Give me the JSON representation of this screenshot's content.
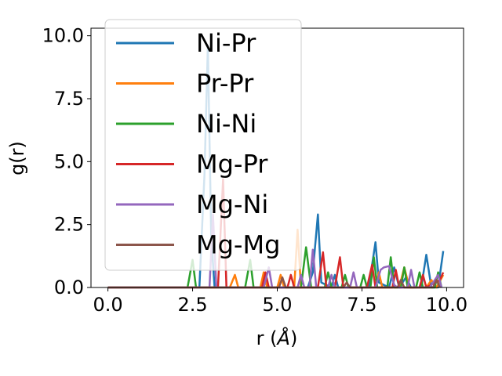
{
  "chart_data": {
    "type": "line",
    "xlabel_main": "r (",
    "xlabel_unit": "Å",
    "xlabel_close": ")",
    "ylabel": "g(r)",
    "xlim": [
      -0.5,
      10.5
    ],
    "ylim": [
      0,
      10.3
    ],
    "xticks": [
      0.0,
      2.5,
      5.0,
      7.5,
      10.0
    ],
    "xtick_labels": [
      "0.0",
      "2.5",
      "5.0",
      "7.5",
      "10.0"
    ],
    "yticks": [
      0.0,
      2.5,
      5.0,
      7.5,
      10.0
    ],
    "ytick_labels": [
      "0.0",
      "2.5",
      "5.0",
      "7.5",
      "10.0"
    ],
    "grid": false,
    "legend_position": "upper-left",
    "series": [
      {
        "name": "Ni-Pr",
        "color": "#1f77b4",
        "points": [
          [
            0,
            0
          ],
          [
            2.7,
            0
          ],
          [
            2.85,
            4.5
          ],
          [
            2.95,
            9.6
          ],
          [
            3.05,
            2.0
          ],
          [
            3.15,
            0
          ],
          [
            5.9,
            0
          ],
          [
            6.05,
            0.6
          ],
          [
            6.2,
            2.9
          ],
          [
            6.3,
            0.2
          ],
          [
            6.6,
            0
          ],
          [
            6.7,
            0.5
          ],
          [
            6.8,
            0
          ],
          [
            7.7,
            0
          ],
          [
            7.9,
            1.8
          ],
          [
            8.0,
            0.2
          ],
          [
            8.3,
            0
          ],
          [
            8.45,
            0.8
          ],
          [
            8.6,
            0
          ],
          [
            8.8,
            0.4
          ],
          [
            8.95,
            0
          ],
          [
            9.25,
            0
          ],
          [
            9.4,
            1.3
          ],
          [
            9.55,
            0
          ],
          [
            9.75,
            0
          ],
          [
            9.9,
            1.45
          ]
        ]
      },
      {
        "name": "Pr-Pr",
        "color": "#ff7f0e",
        "points": [
          [
            0,
            0
          ],
          [
            3.6,
            0
          ],
          [
            3.75,
            0.5
          ],
          [
            3.85,
            0
          ],
          [
            4.5,
            0
          ],
          [
            4.6,
            0.6
          ],
          [
            4.7,
            0
          ],
          [
            5.0,
            0
          ],
          [
            5.1,
            0.5
          ],
          [
            5.2,
            0
          ],
          [
            5.5,
            0
          ],
          [
            5.6,
            2.3
          ],
          [
            5.7,
            0
          ],
          [
            7.9,
            0
          ],
          [
            8.0,
            0.6
          ],
          [
            8.1,
            0
          ],
          [
            8.6,
            0
          ],
          [
            8.75,
            0.8
          ],
          [
            8.9,
            0
          ],
          [
            9.4,
            0
          ],
          [
            9.55,
            0.3
          ],
          [
            9.7,
            0
          ],
          [
            9.9,
            0.5
          ]
        ]
      },
      {
        "name": "Ni-Ni",
        "color": "#2ca02c",
        "points": [
          [
            0,
            0
          ],
          [
            2.35,
            0
          ],
          [
            2.5,
            1.1
          ],
          [
            2.6,
            0
          ],
          [
            4.05,
            0
          ],
          [
            4.2,
            1.1
          ],
          [
            4.3,
            0
          ],
          [
            5.7,
            0
          ],
          [
            5.85,
            1.6
          ],
          [
            6.0,
            0
          ],
          [
            6.4,
            0
          ],
          [
            6.5,
            0.6
          ],
          [
            6.6,
            0
          ],
          [
            6.9,
            0
          ],
          [
            7.0,
            0.5
          ],
          [
            7.1,
            0
          ],
          [
            7.45,
            0
          ],
          [
            7.55,
            0.5
          ],
          [
            7.65,
            0
          ],
          [
            7.75,
            0
          ],
          [
            7.85,
            1.2
          ],
          [
            7.95,
            0
          ],
          [
            8.25,
            0
          ],
          [
            8.35,
            1.2
          ],
          [
            8.45,
            0
          ],
          [
            8.65,
            0
          ],
          [
            8.75,
            0.8
          ],
          [
            8.85,
            0
          ],
          [
            9.1,
            0
          ],
          [
            9.2,
            0.6
          ],
          [
            9.3,
            0
          ],
          [
            9.65,
            0
          ],
          [
            9.75,
            0.6
          ],
          [
            9.85,
            0
          ]
        ]
      },
      {
        "name": "Mg-Pr",
        "color": "#d62728",
        "points": [
          [
            0,
            0
          ],
          [
            3.25,
            0
          ],
          [
            3.4,
            4.3
          ],
          [
            3.5,
            0
          ],
          [
            4.55,
            0
          ],
          [
            4.65,
            0.6
          ],
          [
            4.75,
            0
          ],
          [
            5.3,
            0
          ],
          [
            5.4,
            0.5
          ],
          [
            5.5,
            0
          ],
          [
            6.2,
            0
          ],
          [
            6.35,
            1.4
          ],
          [
            6.45,
            0
          ],
          [
            6.7,
            0
          ],
          [
            6.85,
            1.2
          ],
          [
            6.95,
            0
          ],
          [
            7.65,
            0
          ],
          [
            7.8,
            0.9
          ],
          [
            7.9,
            0
          ],
          [
            8.4,
            0
          ],
          [
            8.5,
            0.7
          ],
          [
            8.6,
            0
          ],
          [
            9.2,
            0
          ],
          [
            9.3,
            0.5
          ],
          [
            9.4,
            0
          ],
          [
            9.8,
            0.3
          ],
          [
            9.9,
            0.6
          ]
        ]
      },
      {
        "name": "Mg-Ni",
        "color": "#9467bd",
        "points": [
          [
            0,
            0
          ],
          [
            3.0,
            0
          ],
          [
            3.1,
            2.9
          ],
          [
            3.2,
            0
          ],
          [
            4.6,
            0
          ],
          [
            4.75,
            0.8
          ],
          [
            4.85,
            0
          ],
          [
            5.6,
            0
          ],
          [
            5.7,
            0.5
          ],
          [
            5.8,
            0
          ],
          [
            5.95,
            0
          ],
          [
            6.05,
            1.5
          ],
          [
            6.15,
            0
          ],
          [
            6.5,
            0
          ],
          [
            6.6,
            0.5
          ],
          [
            6.7,
            0
          ],
          [
            7.15,
            0
          ],
          [
            7.25,
            0.6
          ],
          [
            7.35,
            0
          ],
          [
            7.9,
            0
          ],
          [
            8.05,
            0.7
          ],
          [
            8.15,
            0.8
          ],
          [
            8.3,
            0.85
          ],
          [
            8.45,
            0.1
          ],
          [
            8.55,
            0
          ],
          [
            8.85,
            0
          ],
          [
            8.95,
            0.7
          ],
          [
            9.05,
            0
          ],
          [
            9.5,
            0
          ],
          [
            9.65,
            0.3
          ],
          [
            9.75,
            0.5
          ],
          [
            9.85,
            0
          ]
        ]
      },
      {
        "name": "Mg-Mg",
        "color": "#8c564b",
        "points": [
          [
            0,
            0
          ],
          [
            5.05,
            0
          ],
          [
            5.15,
            0.4
          ],
          [
            5.25,
            0
          ],
          [
            6.95,
            0
          ],
          [
            7.05,
            0.2
          ],
          [
            7.15,
            0
          ],
          [
            8.55,
            0
          ],
          [
            8.65,
            0.3
          ],
          [
            8.75,
            0
          ],
          [
            9.6,
            0
          ],
          [
            9.7,
            0.3
          ],
          [
            9.8,
            0
          ]
        ]
      }
    ]
  }
}
